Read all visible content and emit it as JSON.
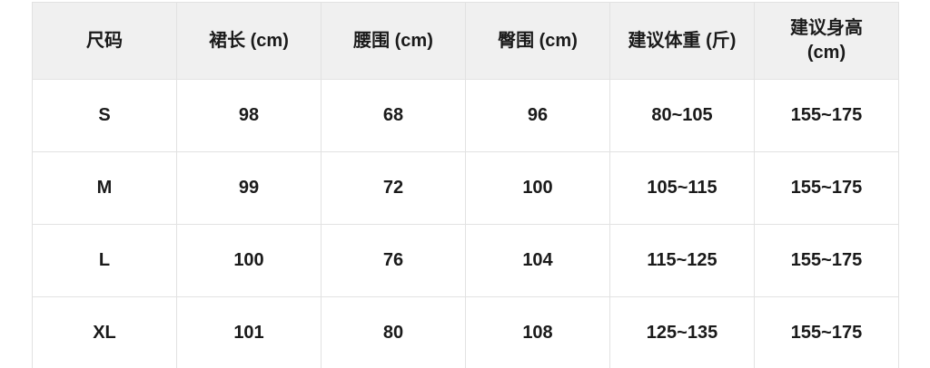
{
  "chart_data": {
    "type": "table",
    "title": "",
    "columns": [
      "尺码",
      "裙长 (cm)",
      "腰围 (cm)",
      "臀围 (cm)",
      "建议体重 (斤)",
      "建议身高 (cm)"
    ],
    "rows": [
      {
        "size": "S",
        "skirt_length_cm": "98",
        "waist_cm": "68",
        "hip_cm": "96",
        "suggested_weight_jin": "80~105",
        "suggested_height_cm": "155~175"
      },
      {
        "size": "M",
        "skirt_length_cm": "99",
        "waist_cm": "72",
        "hip_cm": "100",
        "suggested_weight_jin": "105~115",
        "suggested_height_cm": "155~175"
      },
      {
        "size": "L",
        "skirt_length_cm": "100",
        "waist_cm": "76",
        "hip_cm": "104",
        "suggested_weight_jin": "115~125",
        "suggested_height_cm": "155~175"
      },
      {
        "size": "XL",
        "skirt_length_cm": "101",
        "waist_cm": "80",
        "hip_cm": "108",
        "suggested_weight_jin": "125~135",
        "suggested_height_cm": "155~175"
      }
    ],
    "layout": {
      "grid": true,
      "header_row": true,
      "columns_equal_width": true
    }
  },
  "colors": {
    "page_background": "#ffffff",
    "header_background": "#f0f0f0",
    "border": "#e2e2e2",
    "text": "#1a1a1a"
  }
}
